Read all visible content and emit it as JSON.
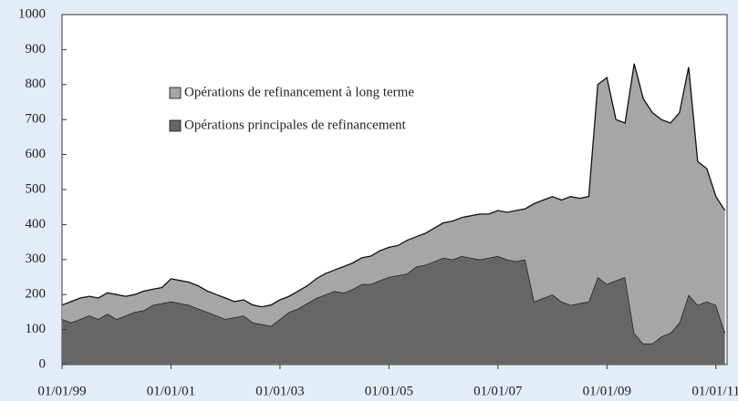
{
  "chart_data": {
    "type": "stacked_area",
    "x": [
      "01/01/99",
      "01/03/99",
      "01/05/99",
      "01/07/99",
      "01/09/99",
      "01/11/99",
      "01/01/00",
      "01/03/00",
      "01/05/00",
      "01/07/00",
      "01/09/00",
      "01/11/00",
      "01/01/01",
      "01/03/01",
      "01/05/01",
      "01/07/01",
      "01/09/01",
      "01/11/01",
      "01/01/02",
      "01/03/02",
      "01/05/02",
      "01/07/02",
      "01/09/02",
      "01/11/02",
      "01/01/03",
      "01/03/03",
      "01/05/03",
      "01/07/03",
      "01/09/03",
      "01/11/03",
      "01/01/04",
      "01/03/04",
      "01/05/04",
      "01/07/04",
      "01/09/04",
      "01/11/04",
      "01/01/05",
      "01/03/05",
      "01/05/05",
      "01/07/05",
      "01/09/05",
      "01/11/05",
      "01/01/06",
      "01/03/06",
      "01/05/06",
      "01/07/06",
      "01/09/06",
      "01/11/06",
      "01/01/07",
      "01/03/07",
      "01/05/07",
      "01/07/07",
      "01/09/07",
      "01/11/07",
      "01/01/08",
      "01/03/08",
      "01/05/08",
      "01/07/08",
      "01/09/08",
      "01/11/08",
      "01/01/09",
      "01/03/09",
      "01/05/09",
      "01/07/09",
      "01/09/09",
      "01/11/09",
      "01/01/10",
      "01/03/10",
      "01/05/10",
      "01/07/10",
      "01/09/10",
      "01/11/10",
      "01/01/11",
      "01/03/11"
    ],
    "series": [
      {
        "name": "Opérations principales de refinancement",
        "color": "#666666",
        "values": [
          130,
          120,
          130,
          140,
          130,
          145,
          130,
          140,
          150,
          155,
          170,
          175,
          180,
          175,
          170,
          160,
          150,
          140,
          130,
          135,
          140,
          120,
          115,
          110,
          130,
          150,
          160,
          175,
          190,
          200,
          210,
          205,
          215,
          230,
          230,
          240,
          250,
          255,
          260,
          280,
          285,
          295,
          305,
          300,
          310,
          305,
          300,
          305,
          310,
          300,
          295,
          300,
          180,
          190,
          200,
          180,
          170,
          175,
          180,
          250,
          230,
          240,
          250,
          90,
          60,
          60,
          80,
          90,
          120,
          200,
          170,
          180,
          170,
          90
        ]
      },
      {
        "name": "Opérations de refinancement à long terme",
        "color": "#a6a6a6",
        "values": [
          40,
          60,
          60,
          55,
          60,
          60,
          70,
          55,
          50,
          55,
          45,
          45,
          65,
          65,
          65,
          65,
          60,
          60,
          60,
          45,
          45,
          50,
          50,
          60,
          55,
          45,
          50,
          50,
          55,
          60,
          60,
          75,
          75,
          75,
          80,
          85,
          85,
          85,
          95,
          85,
          90,
          95,
          100,
          110,
          110,
          120,
          130,
          125,
          130,
          135,
          145,
          145,
          280,
          280,
          280,
          290,
          310,
          300,
          300,
          550,
          590,
          460,
          440,
          770,
          700,
          660,
          620,
          600,
          600,
          650,
          410,
          380,
          310,
          350
        ]
      }
    ],
    "xlim": [
      "01/01/99",
      "15/03/11"
    ],
    "xticks": [
      "01/01/99",
      "01/01/01",
      "01/01/03",
      "01/01/05",
      "01/01/07",
      "01/01/09",
      "01/01/11"
    ],
    "ylim": [
      0,
      1000
    ],
    "yticks": [
      0,
      100,
      200,
      300,
      400,
      500,
      600,
      700,
      800,
      900,
      1000
    ]
  }
}
